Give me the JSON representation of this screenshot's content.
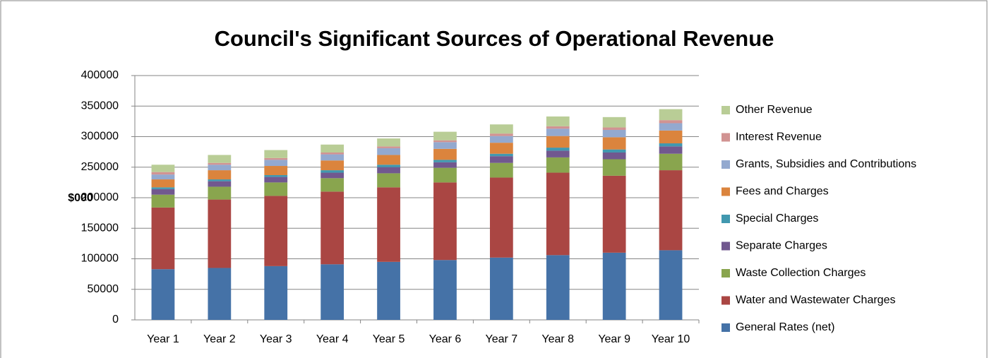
{
  "chart_data": {
    "type": "stacked_bar",
    "title": "Council's Significant Sources of Operational Revenue",
    "y_label": "$000",
    "categories": [
      "Year 1",
      "Year 2",
      "Year 3",
      "Year 4",
      "Year 5",
      "Year 6",
      "Year 7",
      "Year 8",
      "Year 9",
      "Year 10"
    ],
    "series": [
      {
        "name": "General Rates (net)",
        "color": "#4572a7",
        "values": [
          83000,
          85000,
          88000,
          91000,
          95000,
          98000,
          102000,
          106000,
          110000,
          114000
        ]
      },
      {
        "name": "Water and Wastewater Charges",
        "color": "#aa4643",
        "values": [
          101000,
          112000,
          115000,
          119000,
          122000,
          127000,
          131000,
          135000,
          126000,
          131000
        ]
      },
      {
        "name": "Waste Collection Charges",
        "color": "#89a54e",
        "values": [
          21000,
          21000,
          22000,
          22000,
          23000,
          24000,
          24000,
          25000,
          27000,
          27000
        ]
      },
      {
        "name": "Separate Charges",
        "color": "#71588f",
        "values": [
          9000,
          9000,
          9000,
          9000,
          10000,
          9000,
          11000,
          11000,
          11000,
          12000
        ]
      },
      {
        "name": "Special Charges",
        "color": "#4198af",
        "values": [
          3000,
          3000,
          3000,
          4000,
          4000,
          4000,
          4000,
          5000,
          5000,
          5000
        ]
      },
      {
        "name": "Fees and Charges",
        "color": "#db843d",
        "values": [
          13000,
          15000,
          15000,
          16000,
          16000,
          18000,
          18000,
          19000,
          20000,
          21000
        ]
      },
      {
        "name": "Grants, Subsidies and Contributions",
        "color": "#93a9cf",
        "values": [
          8000,
          9000,
          10000,
          10000,
          11000,
          11000,
          11000,
          12000,
          12000,
          12000
        ]
      },
      {
        "name": "Interest Revenue",
        "color": "#d19392",
        "values": [
          4000,
          3000,
          3000,
          3000,
          3000,
          3000,
          4000,
          4000,
          4000,
          5000
        ]
      },
      {
        "name": "Other Revenue",
        "color": "#b9cd96",
        "values": [
          12000,
          13000,
          13000,
          13000,
          13000,
          14000,
          15000,
          16000,
          17000,
          18000
        ]
      }
    ],
    "ylim": [
      0,
      400000
    ],
    "yticks": [
      0,
      50000,
      100000,
      150000,
      200000,
      250000,
      300000,
      350000,
      400000
    ],
    "grid": true
  }
}
